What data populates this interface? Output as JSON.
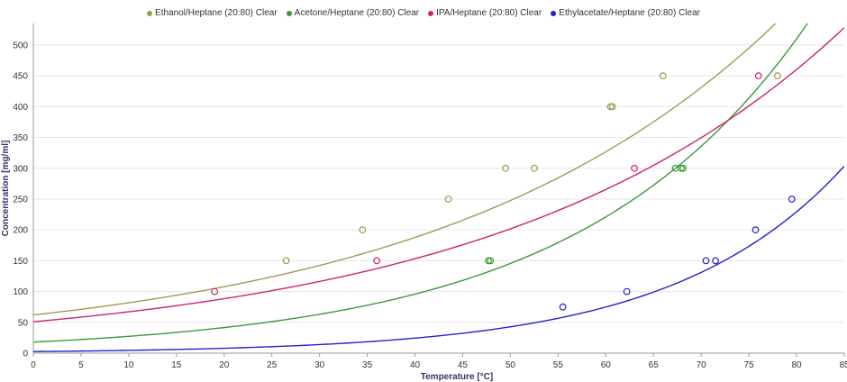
{
  "chart_data": {
    "type": "scatter",
    "xlabel": "Temperature [°C]",
    "ylabel": "Concentration [mg/ml]",
    "xlim": [
      0,
      85
    ],
    "ylim": [
      0,
      535
    ],
    "x_ticks": [
      0,
      5,
      10,
      15,
      20,
      25,
      30,
      35,
      40,
      45,
      50,
      55,
      60,
      65,
      70,
      75,
      80,
      85
    ],
    "y_ticks": [
      0,
      50,
      100,
      150,
      200,
      250,
      300,
      350,
      400,
      450,
      500
    ],
    "grid": true,
    "legend_position": "top-center",
    "series": [
      {
        "name": "Ethanol/Heptane (20:80) Clear",
        "color": "#a09a50",
        "points": [
          [
            26.5,
            150
          ],
          [
            34.5,
            200
          ],
          [
            43.5,
            250
          ],
          [
            49.5,
            300
          ],
          [
            52.5,
            300
          ],
          [
            60.5,
            400
          ],
          [
            60.7,
            400
          ],
          [
            66,
            450
          ],
          [
            78,
            450
          ]
        ],
        "fit": {
          "a": 62.0,
          "b": 0.0277
        }
      },
      {
        "name": "Acetone/Heptane (20:80) Clear",
        "color": "#3a9a3a",
        "points": [
          [
            47.7,
            150
          ],
          [
            47.9,
            150
          ],
          [
            67.3,
            300
          ],
          [
            67.9,
            300
          ],
          [
            68.1,
            300
          ]
        ],
        "fit": {
          "a": 18.0,
          "b": 0.0418
        }
      },
      {
        "name": "IPA/Heptane (20:80) Clear",
        "color": "#cc2277",
        "points": [
          [
            19,
            100
          ],
          [
            36,
            150
          ],
          [
            63,
            300
          ],
          [
            76,
            450
          ]
        ],
        "fit": {
          "a": 51.0,
          "b": 0.0275
        }
      },
      {
        "name": "Ethylacetate/Heptane (20:80) Clear",
        "color": "#2222cc",
        "points": [
          [
            55.5,
            75
          ],
          [
            62.2,
            100
          ],
          [
            70.5,
            150
          ],
          [
            71.5,
            150
          ],
          [
            75.7,
            200
          ],
          [
            79.5,
            250
          ]
        ],
        "fit": {
          "a": 2.6,
          "b": 0.056
        }
      }
    ]
  }
}
